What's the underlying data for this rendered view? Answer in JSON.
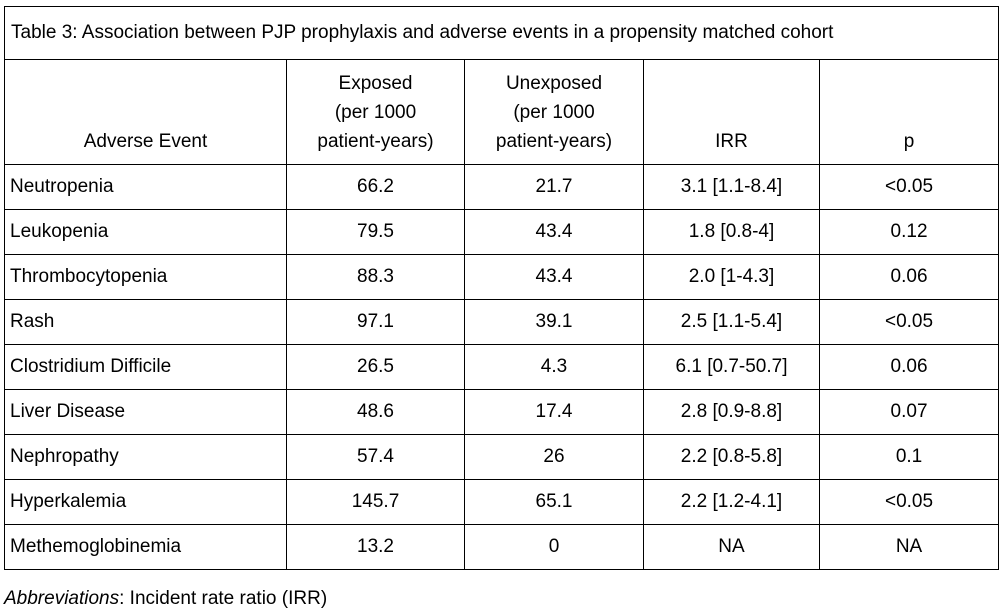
{
  "caption": "Table 3: Association between PJP prophylaxis and adverse events in a propensity matched cohort",
  "columns": {
    "event": "Adverse Event",
    "exposed": [
      "Exposed",
      "(per 1000",
      "patient-years)"
    ],
    "unexposed": [
      "Unexposed",
      "(per 1000",
      "patient-years)"
    ],
    "irr": "IRR",
    "p": "p"
  },
  "rows": [
    {
      "event": "Neutropenia",
      "exposed": "66.2",
      "unexposed": "21.7",
      "irr": "3.1 [1.1-8.4]",
      "p": "<0.05"
    },
    {
      "event": "Leukopenia",
      "exposed": "79.5",
      "unexposed": "43.4",
      "irr": "1.8 [0.8-4]",
      "p": "0.12"
    },
    {
      "event": "Thrombocytopenia",
      "exposed": "88.3",
      "unexposed": "43.4",
      "irr": "2.0 [1-4.3]",
      "p": "0.06"
    },
    {
      "event": "Rash",
      "exposed": "97.1",
      "unexposed": "39.1",
      "irr": "2.5 [1.1-5.4]",
      "p": "<0.05"
    },
    {
      "event": "Clostridium Difficile",
      "exposed": "26.5",
      "unexposed": "4.3",
      "irr": "6.1 [0.7-50.7]",
      "p": "0.06"
    },
    {
      "event": "Liver Disease",
      "exposed": "48.6",
      "unexposed": "17.4",
      "irr": "2.8 [0.9-8.8]",
      "p": "0.07"
    },
    {
      "event": "Nephropathy",
      "exposed": "57.4",
      "unexposed": "26",
      "irr": "2.2 [0.8-5.8]",
      "p": "0.1"
    },
    {
      "event": "Hyperkalemia",
      "exposed": "145.7",
      "unexposed": "65.1",
      "irr": "2.2 [1.2-4.1]",
      "p": "<0.05"
    },
    {
      "event": "Methemoglobinemia",
      "exposed": "13.2",
      "unexposed": "0",
      "irr": "NA",
      "p": "NA"
    }
  ],
  "footnote": {
    "label": "Abbreviations",
    "text": ": Incident rate ratio (IRR)"
  }
}
